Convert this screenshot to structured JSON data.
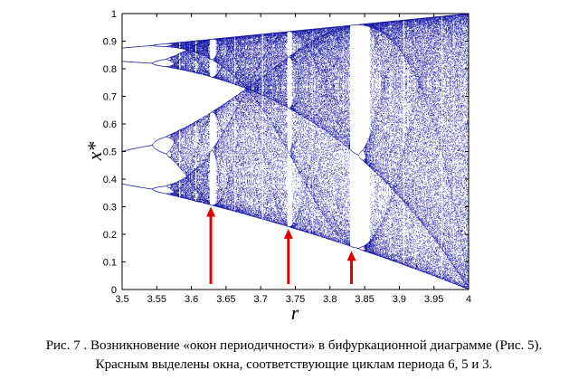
{
  "chart_data": {
    "type": "scatter",
    "title": "",
    "xlabel": "r",
    "ylabel": "x*",
    "xlim": [
      3.5,
      4.0
    ],
    "ylim": [
      0,
      1.0
    ],
    "x_ticks": [
      "3.5",
      "3.55",
      "3.6",
      "3.65",
      "3.7",
      "3.75",
      "3.8",
      "3.85",
      "3.9",
      "3.95",
      "4"
    ],
    "y_ticks": [
      "0",
      "0.1",
      "0.2",
      "0.3",
      "0.4",
      "0.5",
      "0.6",
      "0.7",
      "0.8",
      "0.9",
      "1"
    ],
    "grid": false,
    "series": [
      {
        "generator": "logistic map x(n+1) = r*x(n)*(1 - x(n)), attractor points after transient",
        "color": "#1a1aa6"
      }
    ],
    "highlighted_windows": [
      {
        "r": 3.628,
        "period": 6,
        "arrow_y_start": 0.02,
        "arrow_y_end": 0.3,
        "color": "#e00000"
      },
      {
        "r": 3.74,
        "period": 5,
        "arrow_y_start": 0.02,
        "arrow_y_end": 0.22,
        "color": "#e00000"
      },
      {
        "r": 3.831,
        "period": 3,
        "arrow_y_start": 0.02,
        "arrow_y_end": 0.14,
        "color": "#e00000"
      }
    ]
  },
  "caption": {
    "line1": "Рис. 7 . Возникновение «окон периодичности» в бифуркационной диаграмме (Рис. 5).",
    "line2": "Красным выделены окна, соответствующие циклам периода 6, 5 и 3."
  }
}
